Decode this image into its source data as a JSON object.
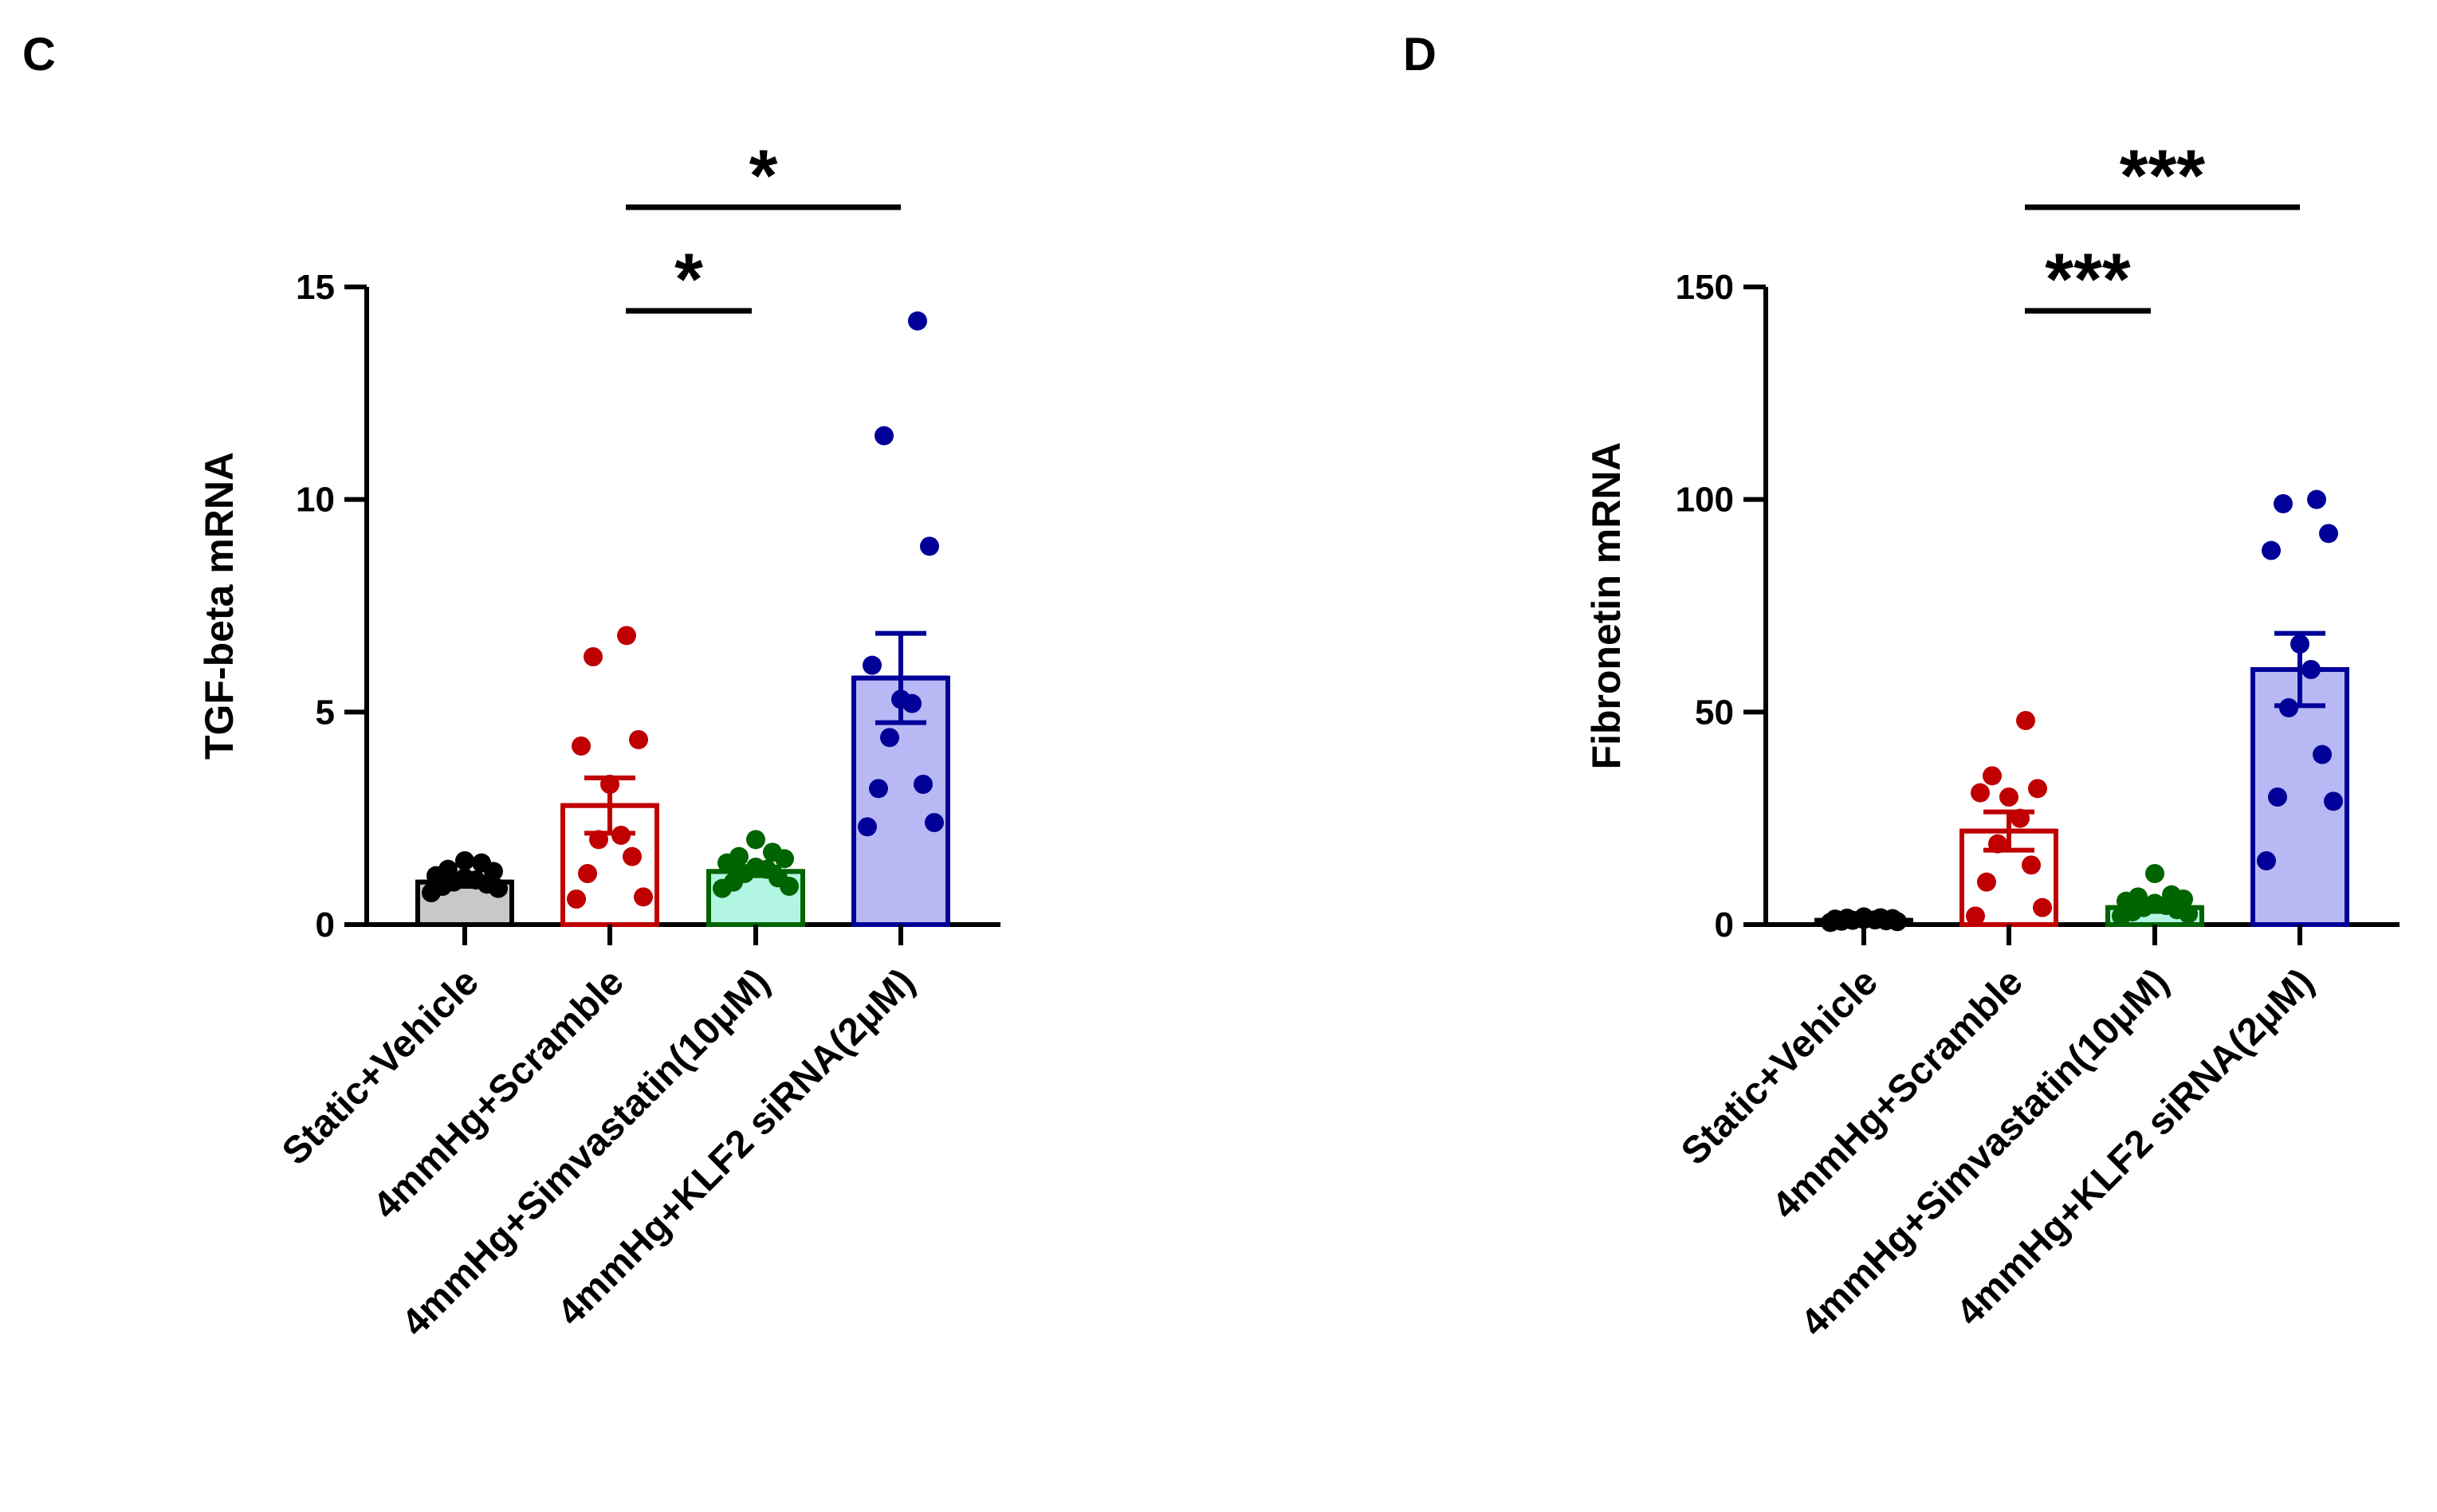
{
  "chart_data": [
    {
      "panel": "C",
      "type": "bar",
      "ylabel": "TGF-beta mRNA",
      "ylim": [
        0,
        15
      ],
      "yticks": [
        0,
        5,
        10,
        15
      ],
      "categories": [
        "Static+Vehicle",
        "4mmHg+Scramble",
        "4mmHg+Simvastatin(10μM)",
        "4mmHg+KLF2 siRNA(2μM)"
      ],
      "values": [
        1.0,
        2.8,
        1.25,
        5.8
      ],
      "sem": [
        0.1,
        0.65,
        0.1,
        1.05
      ],
      "colors": {
        "edge": [
          "#000000",
          "#c00000",
          "#006400",
          "#000099"
        ],
        "fill": [
          "#c8c8c8",
          "#ffffff",
          "#b2f5e2",
          "#b8b8f5"
        ]
      },
      "points": [
        [
          0.75,
          0.85,
          0.9,
          0.95,
          1.0,
          1.05,
          1.1,
          1.15,
          1.25,
          1.3,
          1.45,
          1.5
        ],
        [
          0.6,
          0.65,
          1.2,
          1.6,
          2.0,
          2.1,
          3.3,
          4.2,
          4.35,
          6.3,
          6.8
        ],
        [
          0.85,
          0.9,
          1.0,
          1.1,
          1.2,
          1.3,
          1.35,
          1.45,
          1.55,
          1.6,
          1.7,
          2.0
        ],
        [
          2.3,
          2.4,
          3.2,
          3.3,
          4.4,
          5.2,
          5.3,
          6.1,
          8.9,
          11.5,
          14.2
        ]
      ],
      "significance": [
        {
          "from": 1,
          "to": 2,
          "label": "*"
        },
        {
          "from": 1,
          "to": 3,
          "label": "*"
        }
      ]
    },
    {
      "panel": "D",
      "type": "bar",
      "ylabel": "Fibronetin mRNA",
      "ylim": [
        0,
        150
      ],
      "yticks": [
        0,
        50,
        100,
        150
      ],
      "categories": [
        "Static+Vehicle",
        "4mmHg+Scramble",
        "4mmHg+Simvastatin(10μM)",
        "4mmHg+KLF2 siRNA(2μM)"
      ],
      "values": [
        1.0,
        22,
        4.0,
        60
      ],
      "sem": [
        0.2,
        4.5,
        0.9,
        8.5
      ],
      "colors": {
        "edge": [
          "#000000",
          "#c00000",
          "#006400",
          "#000099"
        ],
        "fill": [
          "#c8c8c8",
          "#ffffff",
          "#b2f5e2",
          "#b8b8f5"
        ]
      },
      "points": [
        [
          0.5,
          0.7,
          0.8,
          0.9,
          1.0,
          1.1,
          1.2,
          1.3,
          1.4,
          1.5,
          1.6,
          1.8
        ],
        [
          2,
          4,
          10,
          14,
          19,
          25,
          30,
          31,
          32,
          35,
          48
        ],
        [
          2,
          2.5,
          3,
          3.5,
          4,
          4.5,
          5,
          5.5,
          6,
          6.5,
          7,
          12
        ],
        [
          15,
          29,
          30,
          40,
          51,
          60,
          66,
          88,
          92,
          99,
          100
        ]
      ],
      "significance": [
        {
          "from": 1,
          "to": 2,
          "label": "***"
        },
        {
          "from": 1,
          "to": 3,
          "label": "***"
        }
      ]
    }
  ]
}
